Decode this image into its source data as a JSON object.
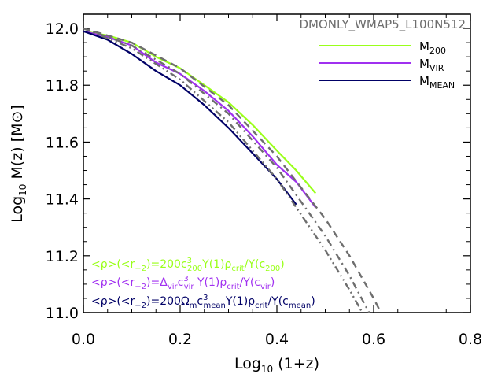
{
  "chart_data": {
    "type": "line",
    "title": "DMONLY_WMAP5_L100N512",
    "xlabel": "Log10 (1+z)",
    "ylabel": "Log10 M(z) [M⊙]",
    "xlim": [
      0.0,
      0.8
    ],
    "ylim": [
      11.0,
      12.05
    ],
    "xticks": [
      "0.0",
      "0.2",
      "0.4",
      "0.6",
      "0.8"
    ],
    "yticks": [
      "11.0",
      "11.2",
      "11.4",
      "11.6",
      "11.8",
      "12.0"
    ],
    "legend_position": "top-right",
    "legend": [
      {
        "label": "M200",
        "color": "#9aff1a"
      },
      {
        "label": "MVIR",
        "color": "#a030f0"
      },
      {
        "label": "MMEAN",
        "color": "#000066"
      }
    ],
    "series": [
      {
        "name": "M200",
        "color": "#9aff1a",
        "style": "solid",
        "x": [
          0.0,
          0.05,
          0.1,
          0.15,
          0.2,
          0.25,
          0.3,
          0.35,
          0.4,
          0.44,
          0.48
        ],
        "y": [
          11.99,
          11.975,
          11.95,
          11.9,
          11.86,
          11.8,
          11.74,
          11.66,
          11.57,
          11.5,
          11.42
        ]
      },
      {
        "name": "MVIR",
        "color": "#a030f0",
        "style": "solid",
        "x": [
          0.0,
          0.05,
          0.1,
          0.15,
          0.2,
          0.25,
          0.3,
          0.35,
          0.4,
          0.44,
          0.48
        ],
        "y": [
          11.99,
          11.97,
          11.94,
          11.88,
          11.84,
          11.78,
          11.71,
          11.62,
          11.52,
          11.46,
          11.37
        ]
      },
      {
        "name": "MMEAN",
        "color": "#000066",
        "style": "solid",
        "x": [
          0.0,
          0.05,
          0.1,
          0.15,
          0.2,
          0.25,
          0.3,
          0.35,
          0.4,
          0.44
        ],
        "y": [
          11.99,
          11.96,
          11.91,
          11.85,
          11.8,
          11.73,
          11.65,
          11.56,
          11.47,
          11.38
        ]
      },
      {
        "name": "",
        "color": "#6e6e6e",
        "style": "dash",
        "x": [
          0.0,
          0.1,
          0.2,
          0.3,
          0.4,
          0.5,
          0.55,
          0.6,
          0.63
        ],
        "y": [
          12.0,
          11.95,
          11.86,
          11.73,
          11.55,
          11.33,
          11.2,
          11.05,
          10.95
        ]
      },
      {
        "name": "",
        "color": "#6e6e6e",
        "style": "dashdot",
        "x": [
          0.0,
          0.1,
          0.2,
          0.3,
          0.4,
          0.5,
          0.55,
          0.6
        ],
        "y": [
          12.0,
          11.94,
          11.84,
          11.7,
          11.51,
          11.27,
          11.13,
          10.97
        ]
      },
      {
        "name": "",
        "color": "#6e6e6e",
        "style": "dashdotdot",
        "x": [
          0.0,
          0.1,
          0.2,
          0.3,
          0.4,
          0.5,
          0.55,
          0.59
        ],
        "y": [
          12.0,
          11.93,
          11.82,
          11.67,
          11.47,
          11.22,
          11.08,
          10.96
        ]
      }
    ],
    "annotations": [
      {
        "text": "<ρ>(<r−2)=200c³200Y(1)ρcrit/Y(c200)",
        "color": "#9aff1a"
      },
      {
        "text": "<ρ>(<r−2)=Δvirc³vir Y(1)ρcrit/Y(cvir)",
        "color": "#a030f0"
      },
      {
        "text": "<ρ>(<r−2)=200Ωmc³meanY(1)ρcrit/Y(cmean)",
        "color": "#000066"
      }
    ]
  }
}
